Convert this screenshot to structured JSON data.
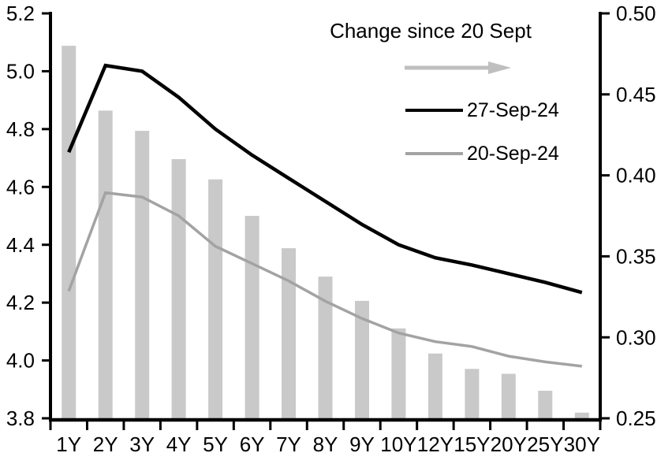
{
  "chart_data": {
    "type": "combo-bar-line",
    "title": "",
    "categories": [
      "1Y",
      "2Y",
      "3Y",
      "4Y",
      "5Y",
      "6Y",
      "7Y",
      "8Y",
      "9Y",
      "10Y",
      "12Y",
      "15Y",
      "20Y",
      "25Y",
      "30Y"
    ],
    "series": [
      {
        "name": "Change since 20 Sept",
        "type": "bar",
        "axis": "right",
        "values": [
          0.48,
          0.44,
          0.4275,
          0.41,
          0.3975,
          0.375,
          0.355,
          0.3375,
          0.3225,
          0.3055,
          0.29,
          0.2805,
          0.2775,
          0.267,
          0.2535
        ]
      },
      {
        "name": "27-Sep-24",
        "type": "line",
        "axis": "left",
        "values": [
          4.72,
          5.02,
          5.0,
          4.91,
          4.8,
          4.71,
          4.63,
          4.55,
          4.47,
          4.4,
          4.355,
          4.33,
          4.3,
          4.27,
          4.235
        ]
      },
      {
        "name": "20-Sep-24",
        "type": "line",
        "axis": "left",
        "values": [
          4.24,
          4.58,
          4.565,
          4.5,
          4.395,
          4.335,
          4.275,
          4.205,
          4.145,
          4.095,
          4.065,
          4.048,
          4.015,
          3.995,
          3.98
        ]
      }
    ],
    "left_axis": {
      "range": [
        3.8,
        5.2
      ],
      "tick_values": [
        5.2,
        5.0,
        4.8,
        4.6,
        4.4,
        4.2,
        4.0,
        3.8
      ],
      "tick_labels": [
        "5.2",
        "5.0",
        "4.8",
        "4.6",
        "4.4",
        "4.2",
        "4.0",
        "3.8"
      ]
    },
    "right_axis": {
      "range": [
        0.25,
        0.5
      ],
      "tick_values": [
        0.5,
        0.45,
        0.4,
        0.35,
        0.3,
        0.25
      ],
      "tick_labels": [
        "0.50",
        "0.45",
        "0.40",
        "0.35",
        "0.30",
        "0.25"
      ]
    },
    "legend": {
      "title": "Change since 20 Sept",
      "arrow_icon": "right-arrow",
      "items": [
        {
          "label": "27-Sep-24"
        },
        {
          "label": "20-Sep-24"
        }
      ]
    },
    "grid": false,
    "colors": {
      "bar": "#C9C9C9",
      "line_27sep": "#000000",
      "line_20sep": "#A3A3A3",
      "arrow": "#BFBFBF",
      "axis": "#000000",
      "text": "#000000",
      "background": "#FFFFFF"
    }
  }
}
